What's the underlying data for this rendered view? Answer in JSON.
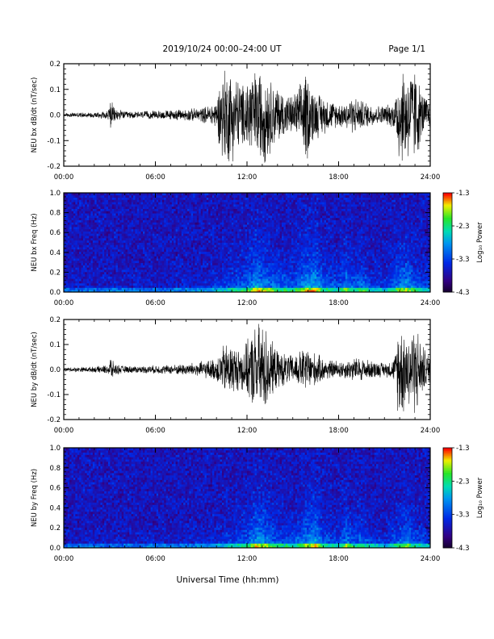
{
  "header": {
    "title": "2019/10/24  00:00–24:00 UT",
    "page": "Page 1/1"
  },
  "xaxis": {
    "label": "Universal Time (hh:mm)",
    "ticks": [
      "00:00",
      "06:00",
      "12:00",
      "18:00",
      "24:00"
    ],
    "range_hours": [
      0,
      24
    ]
  },
  "chart_data": [
    {
      "type": "line",
      "id": "bx-waveform",
      "title": "",
      "ylabel": "NEU bx dB/dt (nT/sec)",
      "ylim": [
        -0.2,
        0.2
      ],
      "yticks": [
        "0.2",
        "0.1",
        "0.0",
        "-0.1",
        "-0.2"
      ],
      "x_unit": "hours UT",
      "envelope": {
        "x": [
          0,
          1,
          2,
          2.9,
          3.05,
          3.3,
          4,
          5,
          6,
          7,
          8,
          9,
          9.5,
          10,
          10.4,
          10.9,
          11.3,
          11.8,
          12.2,
          12.6,
          13.0,
          13.3,
          13.6,
          14.0,
          14.5,
          15.0,
          15.5,
          15.9,
          16.2,
          16.5,
          17.0,
          17.5,
          18.0,
          18.5,
          19.0,
          19.5,
          20.0,
          20.5,
          21.0,
          21.5,
          21.7,
          21.9,
          22.2,
          22.5,
          22.8,
          23.1,
          23.4,
          23.7,
          24
        ],
        "y": [
          0.008,
          0.01,
          0.012,
          0.02,
          0.07,
          0.03,
          0.015,
          0.015,
          0.018,
          0.02,
          0.025,
          0.03,
          0.04,
          0.06,
          0.2,
          0.2,
          0.17,
          0.12,
          0.2,
          0.18,
          0.2,
          0.2,
          0.14,
          0.12,
          0.09,
          0.08,
          0.13,
          0.2,
          0.13,
          0.1,
          0.08,
          0.06,
          0.05,
          0.06,
          0.08,
          0.06,
          0.05,
          0.04,
          0.04,
          0.05,
          0.07,
          0.2,
          0.2,
          0.2,
          0.2,
          0.2,
          0.1,
          0.08,
          0.06
        ]
      }
    },
    {
      "type": "heatmap",
      "id": "bx-spectrogram",
      "title": "",
      "ylabel": "NEU bx Freq (Hz)",
      "ylim": [
        0,
        1.0
      ],
      "yticks": [
        "1.0",
        "0.8",
        "0.6",
        "0.4",
        "0.2",
        "0.0"
      ],
      "colorbar": {
        "label": "Log₁₀ Power",
        "range": [
          -4.3,
          -1.3
        ],
        "ticks": [
          "-1.3",
          "-2.3",
          "-3.3",
          "-4.3"
        ]
      },
      "activity": {
        "x": [
          0,
          3,
          6,
          9,
          10.5,
          12,
          12.6,
          13,
          13.4,
          14,
          15,
          16,
          16.5,
          17,
          18,
          18.5,
          19,
          19.5,
          20,
          21,
          22,
          22.5,
          23,
          24
        ],
        "level": [
          0.05,
          0.1,
          0.08,
          0.15,
          0.3,
          0.45,
          0.7,
          0.6,
          0.55,
          0.45,
          0.4,
          0.65,
          0.7,
          0.45,
          0.35,
          0.55,
          0.4,
          0.5,
          0.3,
          0.25,
          0.55,
          0.6,
          0.4,
          0.3
        ]
      }
    },
    {
      "type": "line",
      "id": "by-waveform",
      "title": "",
      "ylabel": "NEU by dB/dt (nT/sec)",
      "ylim": [
        -0.2,
        0.2
      ],
      "yticks": [
        "0.2",
        "0.1",
        "0.0",
        "-0.1",
        "-0.2"
      ],
      "x_unit": "hours UT",
      "envelope": {
        "x": [
          0,
          1,
          2,
          2.9,
          3.05,
          3.3,
          4,
          5,
          6,
          7,
          8,
          9,
          9.5,
          10,
          10.4,
          10.9,
          11.3,
          11.8,
          12.2,
          12.6,
          13.0,
          13.3,
          13.6,
          14.0,
          14.5,
          15.0,
          15.5,
          15.9,
          16.2,
          16.5,
          17.0,
          17.5,
          18.0,
          18.5,
          19.0,
          19.5,
          20.0,
          20.5,
          21.0,
          21.5,
          21.7,
          21.9,
          22.2,
          22.5,
          22.8,
          23.1,
          23.4,
          23.7,
          24
        ],
        "y": [
          0.008,
          0.01,
          0.012,
          0.02,
          0.06,
          0.025,
          0.015,
          0.015,
          0.018,
          0.02,
          0.025,
          0.035,
          0.04,
          0.05,
          0.1,
          0.12,
          0.09,
          0.1,
          0.14,
          0.2,
          0.2,
          0.18,
          0.12,
          0.08,
          0.07,
          0.06,
          0.08,
          0.1,
          0.08,
          0.07,
          0.05,
          0.04,
          0.04,
          0.04,
          0.05,
          0.05,
          0.04,
          0.035,
          0.03,
          0.04,
          0.06,
          0.2,
          0.2,
          0.16,
          0.18,
          0.2,
          0.12,
          0.08,
          0.06
        ]
      }
    },
    {
      "type": "heatmap",
      "id": "by-spectrogram",
      "title": "",
      "ylabel": "NEU by Freq (Hz)",
      "ylim": [
        0,
        1.0
      ],
      "yticks": [
        "1.0",
        "0.8",
        "0.6",
        "0.4",
        "0.2",
        "0.0"
      ],
      "colorbar": {
        "label": "Log₁₀ Power",
        "range": [
          -4.3,
          -1.3
        ],
        "ticks": [
          "-1.3",
          "-2.3",
          "-3.3",
          "-4.3"
        ]
      },
      "activity": {
        "x": [
          0,
          3,
          6,
          9,
          10.5,
          12,
          12.6,
          13,
          13.4,
          14,
          15,
          16,
          16.5,
          17,
          18,
          18.5,
          19,
          19.5,
          20,
          21,
          22,
          22.5,
          23,
          24
        ],
        "level": [
          0.05,
          0.08,
          0.08,
          0.12,
          0.25,
          0.4,
          0.65,
          0.6,
          0.55,
          0.4,
          0.35,
          0.6,
          0.65,
          0.4,
          0.3,
          0.55,
          0.35,
          0.45,
          0.3,
          0.2,
          0.45,
          0.55,
          0.35,
          0.25
        ]
      }
    }
  ]
}
